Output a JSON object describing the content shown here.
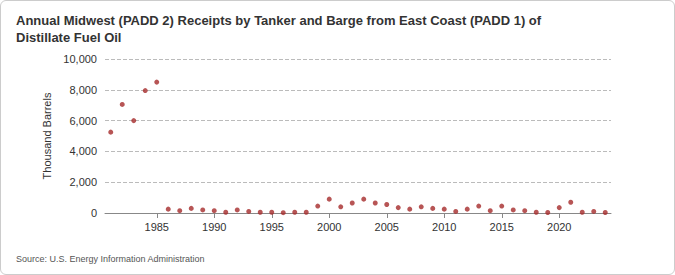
{
  "chart_data": {
    "type": "scatter",
    "title": "Annual Midwest (PADD 2) Receipts by Tanker and Barge from East Coast (PADD 1) of Distillate Fuel Oil",
    "y_label": "Thousand Barrels",
    "source": "Source: U.S. Energy Information Administration",
    "x": [
      1981,
      1982,
      1983,
      1984,
      1985,
      1986,
      1987,
      1988,
      1989,
      1990,
      1991,
      1992,
      1993,
      1994,
      1995,
      1996,
      1997,
      1998,
      1999,
      2000,
      2001,
      2002,
      2003,
      2004,
      2005,
      2006,
      2007,
      2008,
      2009,
      2010,
      2011,
      2012,
      2013,
      2014,
      2015,
      2016,
      2017,
      2018,
      2019,
      2020,
      2021,
      2022,
      2023,
      2024
    ],
    "values": [
      5250,
      7050,
      6000,
      7950,
      8500,
      250,
      150,
      300,
      200,
      150,
      50,
      200,
      100,
      50,
      50,
      20,
      50,
      50,
      450,
      900,
      400,
      650,
      900,
      650,
      550,
      350,
      250,
      400,
      300,
      250,
      100,
      250,
      450,
      150,
      450,
      200,
      150,
      50,
      30,
      350,
      700,
      50,
      100,
      30
    ],
    "color": "#a52a2a",
    "marker": "circle",
    "xlim": [
      1980.5,
      2024.5
    ],
    "xticks": [
      1985,
      1990,
      1995,
      2000,
      2005,
      2010,
      2015,
      2020
    ],
    "ylim": [
      0,
      10000
    ],
    "yticks": [
      0,
      {
        "value": 2000,
        "label": "2,000"
      },
      {
        "value": 4000,
        "label": "4,000"
      },
      {
        "value": 6000,
        "label": "6,000"
      },
      {
        "value": 8000,
        "label": "8,000"
      },
      {
        "value": 10000,
        "label": "10,000"
      }
    ],
    "grid": true
  }
}
